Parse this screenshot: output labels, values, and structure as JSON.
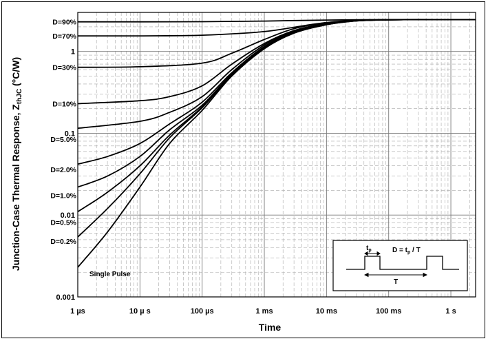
{
  "chart_data": {
    "type": "line",
    "title": "",
    "ylabel": "Junction-Case Thermal Response, Z",
    "ylabel_sub": "thJC",
    "ylabel_unit": " (°C/W)",
    "xlabel": "Time",
    "x_scale": "log",
    "y_scale": "log",
    "xlim": [
      1e-06,
      2.5
    ],
    "ylim": [
      0.001,
      3
    ],
    "x_ticks": [
      {
        "v": 1e-06,
        "label": "1 µs"
      },
      {
        "v": 1e-05,
        "label": "10 µ s"
      },
      {
        "v": 0.0001,
        "label": "100 µs"
      },
      {
        "v": 0.001,
        "label": "1 ms"
      },
      {
        "v": 0.01,
        "label": "10 ms"
      },
      {
        "v": 0.1,
        "label": "100 ms"
      },
      {
        "v": 1,
        "label": "1 s"
      }
    ],
    "y_ticks": [
      {
        "v": 0.001,
        "label": "0.001"
      },
      {
        "v": 0.01,
        "label": "0.01"
      },
      {
        "v": 0.1,
        "label": "0.1"
      },
      {
        "v": 1,
        "label": "1"
      }
    ],
    "grid": true,
    "series": [
      {
        "name": "D=90%",
        "x": [
          1e-06,
          1e-05,
          0.0001,
          0.001,
          0.01,
          0.1,
          1,
          2.5
        ],
        "y": [
          2.3,
          2.3,
          2.31,
          2.35,
          2.42,
          2.45,
          2.45,
          2.45
        ]
      },
      {
        "name": "D=70%",
        "x": [
          1e-06,
          1e-05,
          0.0001,
          0.001,
          0.01,
          0.1,
          1,
          2.5
        ],
        "y": [
          1.55,
          1.55,
          1.58,
          1.75,
          2.25,
          2.44,
          2.45,
          2.45
        ]
      },
      {
        "name": "D=30%",
        "x": [
          1e-06,
          1e-05,
          0.0001,
          0.0003,
          0.001,
          0.003,
          0.01,
          0.03,
          0.1,
          1,
          2.5
        ],
        "y": [
          0.64,
          0.65,
          0.72,
          0.95,
          1.4,
          1.9,
          2.25,
          2.4,
          2.44,
          2.45,
          2.45
        ]
      },
      {
        "name": "D=10%",
        "x": [
          1e-06,
          1e-05,
          3e-05,
          0.0001,
          0.0003,
          0.001,
          0.003,
          0.01,
          0.03,
          0.1,
          1,
          2.5
        ],
        "y": [
          0.23,
          0.25,
          0.28,
          0.38,
          0.7,
          1.25,
          1.8,
          2.2,
          2.38,
          2.44,
          2.45,
          2.45
        ]
      },
      {
        "name": "D=5.0%",
        "x": [
          1e-06,
          1e-05,
          3e-05,
          0.0001,
          0.0003,
          0.001,
          0.003,
          0.01,
          0.03,
          0.1,
          1,
          2.5
        ],
        "y": [
          0.115,
          0.14,
          0.18,
          0.28,
          0.6,
          1.2,
          1.75,
          2.18,
          2.38,
          2.44,
          2.45,
          2.45
        ]
      },
      {
        "name": "D=2.0%",
        "x": [
          1e-06,
          3e-06,
          1e-05,
          3e-05,
          0.0001,
          0.0003,
          0.001,
          0.003,
          0.01,
          0.03,
          0.1,
          1,
          2.5
        ],
        "y": [
          0.042,
          0.052,
          0.075,
          0.13,
          0.24,
          0.55,
          1.15,
          1.72,
          2.15,
          2.37,
          2.44,
          2.45,
          2.45
        ]
      },
      {
        "name": "D=1.0%",
        "x": [
          1e-06,
          3e-06,
          1e-05,
          3e-05,
          0.0001,
          0.0003,
          0.001,
          0.003,
          0.01,
          0.03,
          0.1,
          1,
          2.5
        ],
        "y": [
          0.022,
          0.03,
          0.052,
          0.11,
          0.22,
          0.53,
          1.12,
          1.7,
          2.14,
          2.37,
          2.44,
          2.45,
          2.45
        ]
      },
      {
        "name": "D=0.5%",
        "x": [
          1e-06,
          3e-06,
          1e-05,
          3e-05,
          0.0001,
          0.0003,
          0.001,
          0.003,
          0.01,
          0.03,
          0.1,
          1,
          2.5
        ],
        "y": [
          0.011,
          0.019,
          0.04,
          0.095,
          0.21,
          0.52,
          1.1,
          1.69,
          2.13,
          2.37,
          2.44,
          2.45,
          2.45
        ]
      },
      {
        "name": "D=0.2%",
        "x": [
          1e-06,
          3e-06,
          1e-05,
          3e-05,
          0.0001,
          0.0003,
          0.001,
          0.003,
          0.01,
          0.03,
          0.1,
          1,
          2.5
        ],
        "y": [
          0.0054,
          0.012,
          0.032,
          0.088,
          0.205,
          0.51,
          1.09,
          1.68,
          2.12,
          2.36,
          2.44,
          2.45,
          2.45
        ]
      },
      {
        "name": "Single Pulse",
        "x": [
          1e-06,
          3e-06,
          1e-05,
          3e-05,
          0.0001,
          0.0003,
          0.001,
          0.003,
          0.01,
          0.03,
          0.1,
          1,
          2.5
        ],
        "y": [
          0.0023,
          0.0062,
          0.022,
          0.075,
          0.19,
          0.5,
          1.08,
          1.67,
          2.12,
          2.36,
          2.44,
          2.45,
          2.45
        ]
      }
    ],
    "curve_labels": [
      {
        "text": "D=90%",
        "y": 2.3
      },
      {
        "text": "D=70%",
        "y": 1.55
      },
      {
        "text": "D=30%",
        "y": 0.64
      },
      {
        "text": "D=10%",
        "y": 0.23
      },
      {
        "text": "D=5.0%",
        "y": 0.085
      },
      {
        "text": "D=2.0%",
        "y": 0.036
      },
      {
        "text": "D=1.0%",
        "y": 0.0175
      },
      {
        "text": "D=0.5%",
        "y": 0.0082
      },
      {
        "text": "D=0.2%",
        "y": 0.0048
      }
    ],
    "single_pulse_label": "Single Pulse",
    "inset": {
      "formula_prefix": "D = t",
      "formula_sub": "p",
      "formula_suffix": " / T",
      "tp_main": "t",
      "tp_sub": "p",
      "period_label": "T"
    }
  }
}
